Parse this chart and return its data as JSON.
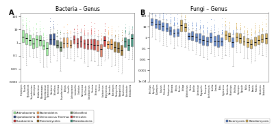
{
  "panel_A_title": "Bacteria – Genus",
  "panel_B_title": "Fungi – Genus",
  "panel_A_label": "A",
  "panel_B_label": "B",
  "background_color": "#FFFFFF",
  "plot_bg_color": "#FFFFFF",
  "bact_phyla_seq": [
    "Actinobacteria",
    "Actinobacteria",
    "Actinobacteria",
    "Actinobacteria",
    "Actinobacteria",
    "Actinobacteria",
    "Actinobacteria",
    "Actinobacteria",
    "Cyanobacteria",
    "Cyanobacteria",
    "Chloroflexi",
    "Chloroflexi",
    "Bacteroidetes",
    "Bacteroidetes",
    "Bacteroidetes",
    "Firmicutes",
    "Firmicutes",
    "Firmicutes",
    "Firmicutes",
    "Firmicutes",
    "Firmicutes",
    "Firmicutes",
    "Deinococcus_Thermus",
    "Deinococcus_Thermus",
    "Fusobacteria",
    "Bacteroidetes",
    "Bacteroidetes",
    "Planctomycetes",
    "Planctomycetes",
    "Planctomycetes",
    "Proteobacteria",
    "Proteobacteria",
    "Proteobacteria"
  ],
  "fungi_phyla_seq": [
    "Ascomycota",
    "Ascomycota",
    "Ascomycota",
    "Ascomycota",
    "Ascomycota",
    "Ascomycota",
    "Ascomycota",
    "Ascomycota",
    "Basidiomycota",
    "Basidiomycota",
    "Ascomycota",
    "Ascomycota",
    "Ascomycota",
    "Ascomycota",
    "Ascomycota",
    "Ascomycota",
    "Ascomycota",
    "Ascomycota",
    "Ascomycota",
    "Ascomycota",
    "Basidiomycota",
    "Basidiomycota",
    "Ascomycota",
    "Basidiomycota",
    "Basidiomycota",
    "Basidiomycota",
    "Basidiomycota",
    "Basidiomycota",
    "Basidiomycota",
    "Basidiomycota",
    "Basidiomycota",
    "Basidiomycota"
  ],
  "phylum_color_map": {
    "Actinobacteria": "#90EE90",
    "Bacteroidetes": "#FFA040",
    "Chloroflexi": "#5A7A50",
    "Cyanobacteria": "#1A3A80",
    "Deinococcus_Thermus": "#E07050",
    "Firmicutes": "#CC2222",
    "Fusobacteria": "#CC2222",
    "Planctomycetes": "#8B6010",
    "Proteobacteria": "#2A8870"
  },
  "ascomycota_color": "#4472C4",
  "basidiomycota_color": "#D4A843",
  "n_bact": 33,
  "n_fungi": 32,
  "bact_ylim": [
    0.001,
    200
  ],
  "fungi_ylim": [
    9e-05,
    200
  ],
  "bact_yticks": [
    0.001,
    0.01,
    0.1,
    1,
    10,
    100
  ],
  "bact_yticklabels": [
    "0.001",
    "0.01",
    "0.1",
    "1",
    "10",
    "100"
  ],
  "fungi_yticks": [
    0.0001,
    0.001,
    0.01,
    0.1,
    1,
    10,
    100
  ],
  "fungi_yticklabels": [
    "1e-04",
    "0.001",
    "0.01",
    "0.1",
    "1",
    "10",
    "100"
  ],
  "legend_bact": [
    {
      "label": "Actinobacteria",
      "color": "#90EE90"
    },
    {
      "label": "Cyanobacteria",
      "color": "#1A3A80"
    },
    {
      "label": "Fusobacteria",
      "color": "#CC2222"
    },
    {
      "label": "Bacteroidetes",
      "color": "#FFA040"
    },
    {
      "label": "Deinococcus Thermus",
      "color": "#E07050"
    },
    {
      "label": "Planctomycetes",
      "color": "#8B6010"
    },
    {
      "label": "Chloroflexi",
      "color": "#5A7A50"
    },
    {
      "label": "Firmicutes",
      "color": "#CC2222"
    },
    {
      "label": "Proteobacteria",
      "color": "#2A8870"
    }
  ]
}
